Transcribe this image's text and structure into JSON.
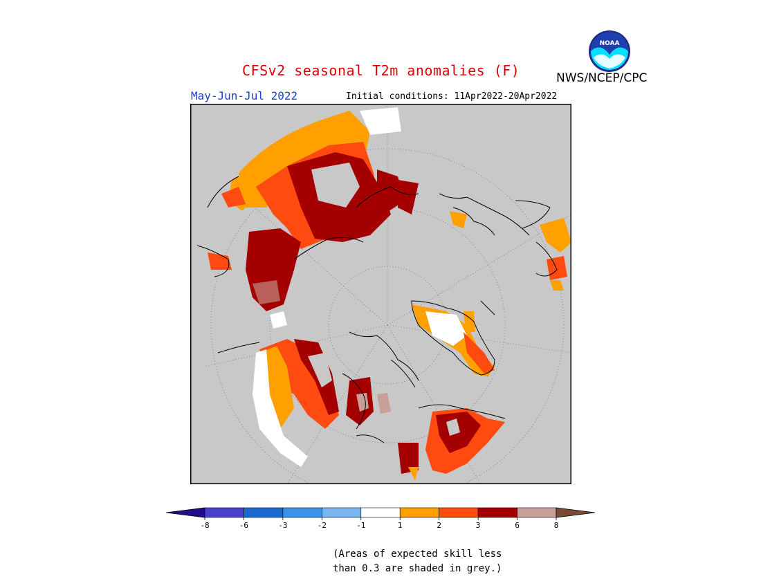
{
  "title": "CFSv2 seasonal T2m anomalies (F)",
  "season": "May-Jun-Jul 2022",
  "initial_conditions": "Initial conditions: 11Apr2022-20Apr2022",
  "agency": "NWS/NCEP/CPC",
  "logo_text": "NOAA",
  "colorbar": {
    "ticks": [
      "-8",
      "-6",
      "-3",
      "-2",
      "-1",
      "1",
      "2",
      "3",
      "6",
      "8"
    ],
    "colors": [
      "#1e0d8c",
      "#4a3fc8",
      "#1b6ad0",
      "#3c91e8",
      "#78b6f2",
      "#ffffff",
      "#ffa000",
      "#ff4a10",
      "#a40000",
      "#c8a098",
      "#7a4a38"
    ]
  },
  "map_colors": {
    "land_gray": "#c8c8c8",
    "ocean_gray": "#c8c8c8",
    "class_1_2": "#ffa000",
    "class_2_3": "#ff4a10",
    "class_3_6": "#a40000",
    "class_6_8": "#c8a098"
  },
  "skill_note": {
    "line1": "(Areas of expected skill less",
    "line2": "than 0.3 are shaded in grey.)"
  }
}
